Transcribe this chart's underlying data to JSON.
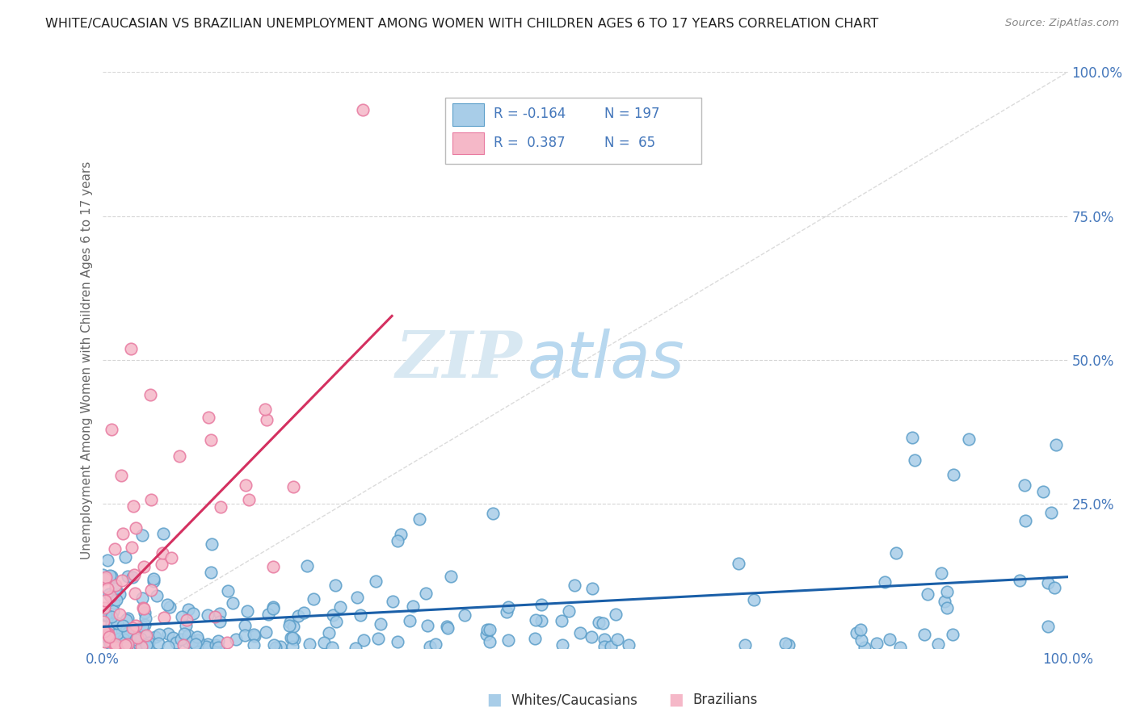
{
  "title": "WHITE/CAUCASIAN VS BRAZILIAN UNEMPLOYMENT AMONG WOMEN WITH CHILDREN AGES 6 TO 17 YEARS CORRELATION CHART",
  "source": "Source: ZipAtlas.com",
  "ylabel": "Unemployment Among Women with Children Ages 6 to 17 years",
  "legend_r_blue": "-0.164",
  "legend_n_blue": "197",
  "legend_r_pink": "0.387",
  "legend_n_pink": "65",
  "blue_color": "#a8cde8",
  "pink_color": "#f5b8c8",
  "blue_edge_color": "#5b9ec9",
  "pink_edge_color": "#e87aa0",
  "blue_line_color": "#1a5fa8",
  "pink_line_color": "#d43060",
  "axis_label_color": "#4477bb",
  "watermark_zip_color": "#c8dff0",
  "watermark_atlas_color": "#c8dff0",
  "background_color": "#ffffff",
  "grid_color": "#cccccc",
  "blue_N": 197,
  "pink_N": 65,
  "blue_R": -0.164,
  "pink_R": 0.387
}
